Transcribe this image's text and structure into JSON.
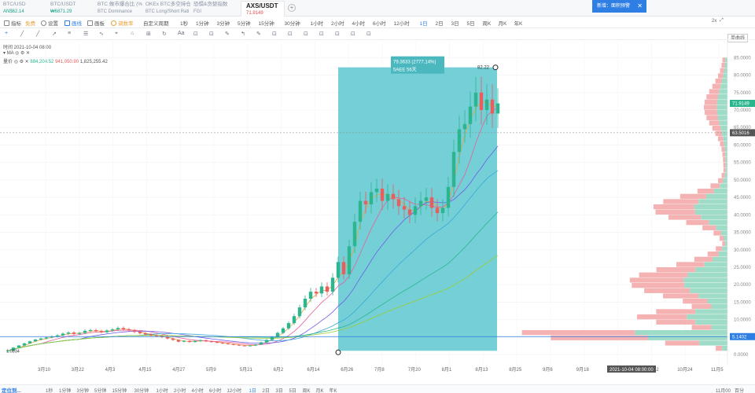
{
  "tabs": [
    {
      "title": "BTC/USD",
      "sub": "AN$62.14",
      "sub_color": "#1aa38a"
    },
    {
      "title": "BTC/USDT",
      "sub": "₩6871.29",
      "sub_color": "#1aa38a"
    },
    {
      "title": "BTC 做市爆合比 (%",
      "sub": "BTC Dominance",
      "sub_color": "#8a93a3"
    },
    {
      "title": "OKEx BTC多空持仓",
      "sub": "BTC Long/Short Rati",
      "sub_color": "#8a93a3"
    },
    {
      "title": "恐惧&贪婪指数",
      "sub": "FGI",
      "sub_color": "#8a93a3"
    },
    {
      "title": "AXS/USDT",
      "sub": "71.9149",
      "sub_color": "#e04a4a"
    }
  ],
  "add_tab": "+",
  "notice": {
    "text": "新增：面积预警",
    "close": "✕"
  },
  "toolbar": {
    "items": [
      "指标",
      "免费",
      "设置",
      "画线",
      "画板",
      "调数率",
      "自定义周期"
    ],
    "periods": [
      "1秒",
      "1分钟",
      "3分钟",
      "5分钟",
      "15分钟",
      "30分钟",
      "1小时",
      "2小时",
      "4小时",
      "6小时",
      "12小时",
      "1日",
      "2日",
      "3日",
      "5日",
      "周K",
      "月K",
      "年K"
    ],
    "active_period": "1日",
    "right": [
      "2x",
      "⤢"
    ],
    "chart_type": "单曲线"
  },
  "drawtools": [
    "+",
    "╱",
    "╱",
    "↗",
    "≡",
    "☰",
    "∿",
    "⌖",
    "⌂",
    "⊞",
    "↻",
    "Aa",
    "⊡",
    "⊡",
    "✎",
    "↰",
    "✎",
    "⊡",
    "⊡",
    "⊡",
    "⊡",
    "⊡",
    "⊡",
    "⊡"
  ],
  "info": {
    "time": "时间 2021-10-04 08:00",
    "ma": "MA",
    "vol_label": "量价",
    "vol1": "884,204.52",
    "vol2": "941,050.90",
    "vol3": "1,825,255.42"
  },
  "measure": {
    "line1": "79.3633 (2777.14%)",
    "line2": "56天",
    "line2_prefix": "5AEE"
  },
  "markers": {
    "high": "82.22",
    "low": "1.0834"
  },
  "price_axis": [
    "85.0000",
    "80.0000",
    "75.0000",
    "70.0000",
    "65.0000",
    "60.0000",
    "55.0000",
    "50.0000",
    "45.0000",
    "40.0000",
    "35.0000",
    "30.0000",
    "25.0000",
    "20.0000",
    "15.0000",
    "10.0000",
    "5.0000",
    "0.0000"
  ],
  "price_badges": {
    "current": "71.9149",
    "crosshair": "63.5016",
    "base": "5.1402"
  },
  "time_axis": [
    "3月10",
    "3月22",
    "4月3",
    "4月15",
    "4月27",
    "5月9",
    "5月21",
    "6月2",
    "6月14",
    "6月26",
    "7月8",
    "7月20",
    "8月1",
    "8月13",
    "8月25",
    "9月6",
    "9月18",
    "",
    "10月12",
    "10月24",
    "11月5"
  ],
  "time_badge": "2021-10-04 08:00:00",
  "bottom": {
    "goto": "定位到...",
    "periods": [
      "1秒",
      "1分钟",
      "3分钟",
      "5分钟",
      "15分钟",
      "30分钟",
      "1小时",
      "2小时",
      "4小时",
      "6小时",
      "12小时",
      "1日",
      "2日",
      "3日",
      "5日",
      "周K",
      "月K",
      "年K"
    ],
    "active": "1日",
    "right": [
      "11月00",
      "百分"
    ]
  },
  "colors": {
    "up": "#2cb68f",
    "down": "#e85d5d",
    "measure": "#5cc8cf",
    "profile_up": "#9fdcc8",
    "profile_down": "#f4b2b2",
    "accent": "#2f7ee3"
  },
  "chart_data": {
    "type": "candlestick",
    "symbol": "AXS/USDT",
    "interval": "1日",
    "ylim": [
      -2,
      88
    ],
    "y_ticks": [
      0,
      5,
      10,
      15,
      20,
      25,
      30,
      35,
      40,
      45,
      50,
      55,
      60,
      65,
      70,
      75,
      80,
      85
    ],
    "x_labels": [
      "3月10",
      "3月22",
      "4月3",
      "4月15",
      "4月27",
      "5月9",
      "5月21",
      "6月2",
      "6月14",
      "6月26",
      "7月8",
      "7月20",
      "8月1",
      "8月13",
      "8月25",
      "9月6",
      "9月18",
      "",
      "10月12",
      "10月24",
      "11月5"
    ],
    "last_price": 71.9149,
    "crosshair_price": 63.5016,
    "base_price": 5.1402,
    "period_high": 82.22,
    "period_low": 1.0834,
    "measure_change": "79.3633 (2777.14%)",
    "measure_days": 56,
    "closes": [
      1.1,
      2.0,
      2.6,
      3.2,
      3.8,
      4.3,
      4.6,
      4.9,
      5.2,
      5.5,
      6.0,
      6.3,
      5.9,
      6.2,
      6.8,
      7.0,
      6.7,
      6.4,
      6.9,
      7.2,
      7.6,
      7.2,
      6.9,
      6.5,
      6.1,
      5.8,
      5.5,
      5.3,
      5.0,
      4.6,
      4.2,
      3.7,
      3.9,
      3.6,
      3.9,
      4.1,
      3.8,
      3.6,
      3.4,
      3.2,
      3.0,
      2.8,
      2.6,
      2.5,
      2.6,
      2.9,
      3.5,
      4.2,
      5.0,
      6.2,
      7.5,
      9.0,
      11.0,
      13.5,
      16.0,
      18.0,
      17.5,
      19.5,
      18.0,
      22.0,
      26.5,
      23.0,
      31.0,
      38.0,
      44.0,
      43.0,
      46.5,
      47.5,
      44.0,
      46.0,
      44.5,
      42.5,
      41.5,
      40.0,
      42.5,
      44.0,
      45.0,
      42.0,
      40.5,
      42.0,
      48.0,
      58.0,
      64.5,
      66.0,
      71.0,
      75.0,
      70.0,
      73.0,
      69.0,
      71.9
    ]
  }
}
